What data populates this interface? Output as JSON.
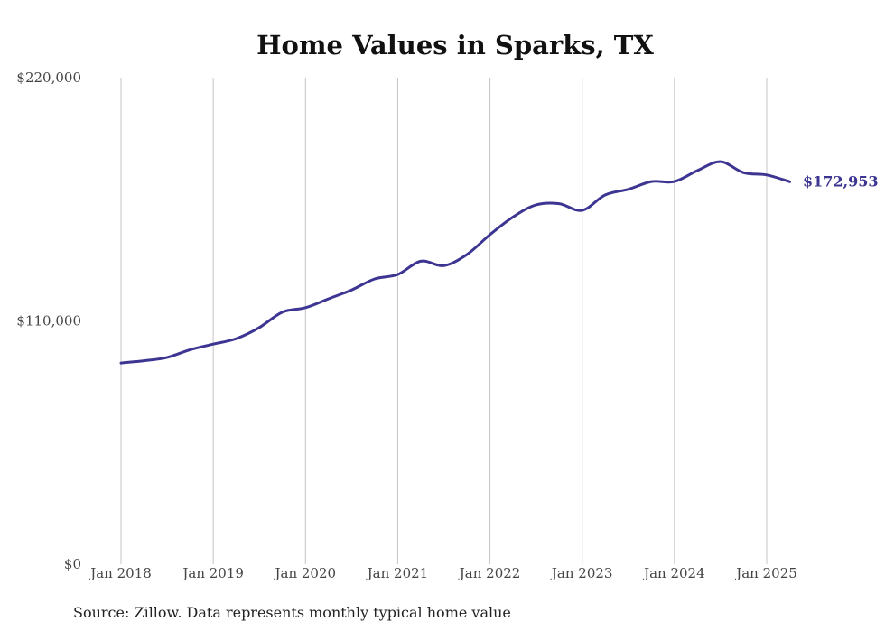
{
  "chart_data": {
    "type": "line",
    "title": "Home Values in Sparks, TX",
    "xlabel": "",
    "ylabel": "",
    "ylim": [
      0,
      220000
    ],
    "yticks": [
      {
        "value": 0,
        "label": "$0"
      },
      {
        "value": 110000,
        "label": "$110,000"
      },
      {
        "value": 220000,
        "label": "$220,000"
      }
    ],
    "xticks": [
      {
        "value": 2018,
        "label": "Jan 2018"
      },
      {
        "value": 2019,
        "label": "Jan 2019"
      },
      {
        "value": 2020,
        "label": "Jan 2020"
      },
      {
        "value": 2021,
        "label": "Jan 2021"
      },
      {
        "value": 2022,
        "label": "Jan 2022"
      },
      {
        "value": 2023,
        "label": "Jan 2023"
      },
      {
        "value": 2024,
        "label": "Jan 2024"
      },
      {
        "value": 2025,
        "label": "Jan 2025"
      }
    ],
    "grid": "vertical",
    "legend": "none",
    "line_color": "#3d3592",
    "end_label": "$172,953",
    "source": "Source: Zillow. Data represents monthly typical home value",
    "series": [
      {
        "x": [
          2018.0,
          2018.25,
          2018.5,
          2018.75,
          2019.0,
          2019.25,
          2019.5,
          2019.75,
          2020.0,
          2020.25,
          2020.5,
          2020.75,
          2021.0,
          2021.25,
          2021.5,
          2021.75,
          2022.0,
          2022.25,
          2022.5,
          2022.75,
          2023.0,
          2023.25,
          2023.5,
          2023.75,
          2024.0,
          2024.25,
          2024.5,
          2024.75,
          2025.0,
          2025.25
        ],
        "values": [
          91000,
          92000,
          93500,
          97000,
          99500,
          102000,
          107000,
          114000,
          116000,
          120000,
          124000,
          129000,
          131000,
          137000,
          135000,
          140000,
          149000,
          157000,
          162500,
          163000,
          160000,
          167000,
          169500,
          173000,
          173000,
          178000,
          182000,
          177000,
          176000,
          172953
        ]
      }
    ]
  }
}
